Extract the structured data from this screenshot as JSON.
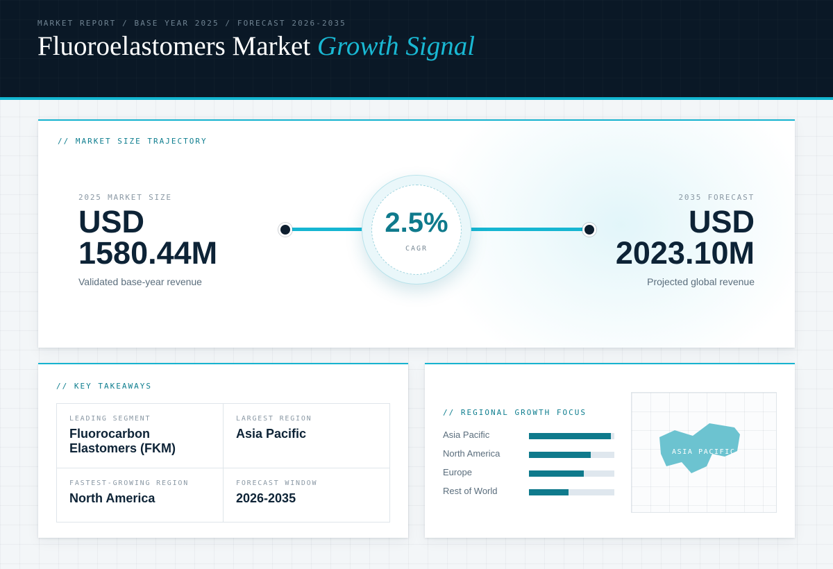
{
  "header": {
    "kicker": "MARKET REPORT / BASE YEAR 2025 / FORECAST 2026-2035",
    "title_main": "Fluoroelastomers Market",
    "title_accent": "Growth Signal"
  },
  "trajectory": {
    "section_label": "// MARKET SIZE TRAJECTORY",
    "start": {
      "label": "2025 MARKET SIZE",
      "currency": "USD",
      "value": "1580.44M",
      "caption": "Validated base-year revenue"
    },
    "end": {
      "label": "2035 FORECAST",
      "currency": "USD",
      "value": "2023.10M",
      "caption": "Projected global revenue"
    },
    "cagr": {
      "value": "2.5%",
      "label": "CAGR"
    }
  },
  "takeaways": {
    "section_label": "// KEY TAKEAWAYS",
    "items": [
      {
        "label": "LEADING SEGMENT",
        "value": "Fluorocarbon Elastomers (FKM)"
      },
      {
        "label": "LARGEST REGION",
        "value": "Asia Pacific"
      },
      {
        "label": "FASTEST-GROWING REGION",
        "value": "North America"
      },
      {
        "label": "FORECAST WINDOW",
        "value": "2026-2035"
      }
    ]
  },
  "regional": {
    "section_label": "// REGIONAL GROWTH FOCUS",
    "bars": [
      {
        "name": "Asia Pacific",
        "fraction": 0.96
      },
      {
        "name": "North America",
        "fraction": 0.72
      },
      {
        "name": "Europe",
        "fraction": 0.64
      },
      {
        "name": "Rest of World",
        "fraction": 0.46
      }
    ],
    "map_label": "ASIA PACIFIC"
  },
  "colors": {
    "accent": "#16b6d2",
    "accent_dark": "#0f7a8c",
    "navy": "#0a1826",
    "map_fill": "#6cc3d0"
  }
}
